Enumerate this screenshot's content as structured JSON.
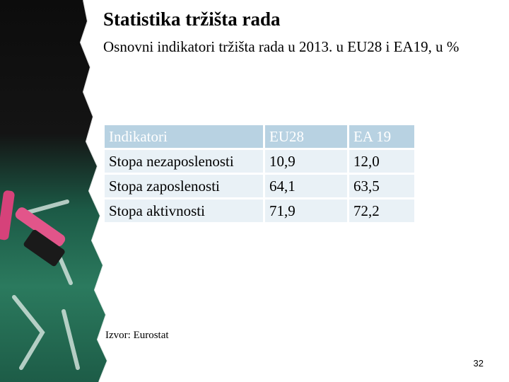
{
  "slide": {
    "title": "Statistika tržišta rada",
    "subtitle": "Osnovni indikatori tržišta rada u 2013. u EU28 i EA19, u %",
    "table": {
      "headers": [
        "Indikatori",
        "EU28",
        "EA 19"
      ],
      "rows": [
        [
          "Stopa nezaposlenosti",
          "10,9",
          "12,0"
        ],
        [
          "Stopa zaposlenosti",
          "64,1",
          "63,5"
        ],
        [
          "Stopa aktivnosti",
          "71,9",
          "72,2"
        ]
      ]
    },
    "source": "Izvor: Eurostat",
    "page_number": "32"
  },
  "colors": {
    "header_fill": "#b8d2e2",
    "cell_fill": "#e9f1f6",
    "chalkboard_green": "#1f6b52",
    "chalk_pink": "#d6427a"
  },
  "icons": [
    "chalkboard-decoration",
    "pink-chalk-image"
  ]
}
